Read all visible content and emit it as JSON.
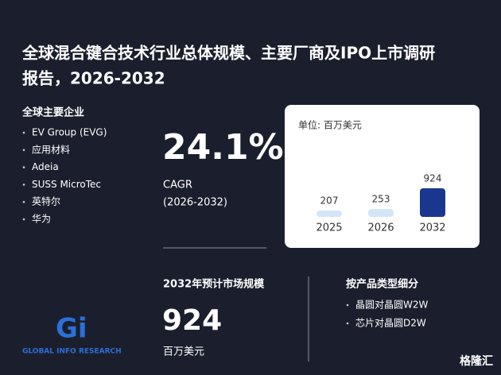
{
  "title_lines": [
    "全球混合键合技术行业总体规模、主要厂商及IPO上市调研",
    "报告，2026-2032"
  ],
  "companies": {
    "heading": "全球主要企业",
    "items": [
      "EV Group (EVG)",
      "应用材料",
      "Adeia",
      "SUSS MicroTec",
      "英特尔",
      "华为"
    ]
  },
  "cagr": {
    "value": "24.1%",
    "label": "CAGR",
    "period": "(2026-2032)"
  },
  "market_size": {
    "heading": "2032年预计市场规模",
    "value": 924,
    "unit": "百万美元"
  },
  "segments": {
    "heading": "按产品类型细分",
    "items": [
      "晶圆对晶圆W2W",
      "芯片对晶圆D2W"
    ]
  },
  "logo": {
    "mark": "Gi",
    "name": "GLOBAL INFO RESEARCH"
  },
  "watermark": "格隆汇",
  "chart_data": {
    "type": "bar",
    "unit_label": "单位: 百万美元",
    "categories": [
      "2025",
      "2026",
      "2032"
    ],
    "values": [
      207,
      253,
      924
    ],
    "colors": [
      "#d3e6f8",
      "#d3e6f8",
      "#1a3790"
    ]
  }
}
